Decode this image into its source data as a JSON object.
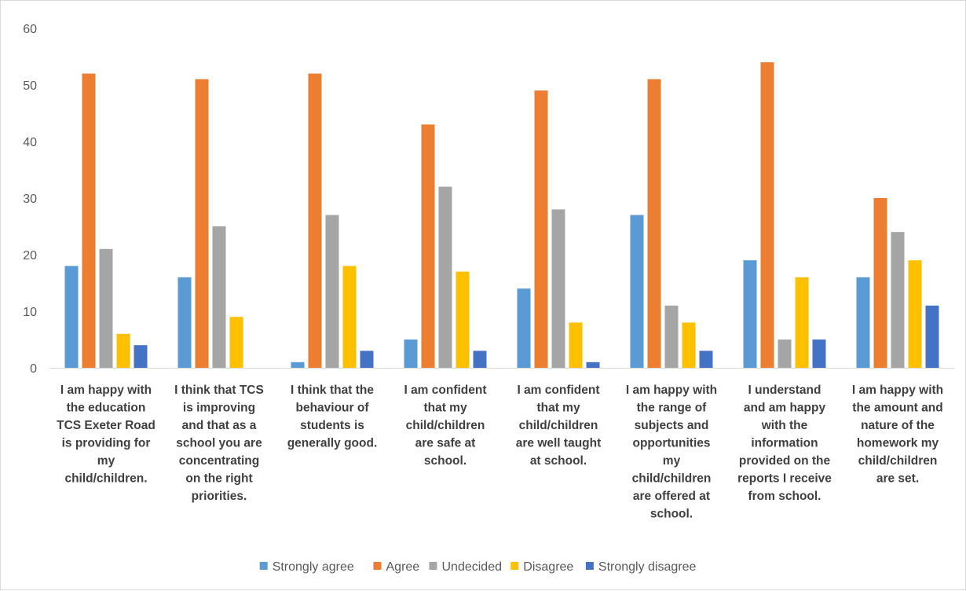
{
  "chart_data": {
    "type": "bar",
    "title": "",
    "xlabel": "",
    "ylabel": "",
    "ylim": [
      0,
      60
    ],
    "yticks": [
      0,
      10,
      20,
      30,
      40,
      50,
      60
    ],
    "grid": false,
    "legend_position": "bottom",
    "categories": [
      [
        "I am happy with",
        "the education",
        "TCS Exeter Road",
        "is providing for",
        "my",
        "child/children."
      ],
      [
        "I think that TCS",
        "is improving",
        "and that as a",
        "school you are",
        "concentrating",
        "on the right",
        "priorities."
      ],
      [
        "I think that the",
        "behaviour of",
        "students is",
        "generally good."
      ],
      [
        "I am confident",
        "that my",
        "child/children",
        "are safe at",
        "school."
      ],
      [
        "I am confident",
        "that my",
        "child/children",
        "are well taught",
        "at school."
      ],
      [
        "I am happy with",
        "the range of",
        "subjects and",
        "opportunities",
        "my",
        "child/children",
        "are offered at",
        "school."
      ],
      [
        "I understand",
        "and am happy",
        "with the",
        "information",
        "provided on the",
        "reports I receive",
        "from school."
      ],
      [
        "I am happy with",
        "the amount and",
        "nature of the",
        "homework my",
        "child/children",
        "are set."
      ]
    ],
    "series": [
      {
        "name": "Strongly agree",
        "color": "#5b9bd5",
        "values": [
          18,
          16,
          1,
          5,
          14,
          27,
          19,
          16
        ]
      },
      {
        "name": "Agree",
        "color": "#ed7d31",
        "values": [
          52,
          51,
          52,
          43,
          49,
          51,
          54,
          30
        ]
      },
      {
        "name": "Undecided",
        "color": "#a5a5a5",
        "values": [
          21,
          25,
          27,
          32,
          28,
          11,
          5,
          24
        ]
      },
      {
        "name": "Disagree",
        "color": "#ffc000",
        "values": [
          6,
          9,
          18,
          17,
          8,
          8,
          16,
          19
        ]
      },
      {
        "name": "Strongly disagree",
        "color": "#4472c4",
        "values": [
          4,
          0,
          3,
          3,
          1,
          3,
          5,
          11
        ]
      }
    ]
  }
}
